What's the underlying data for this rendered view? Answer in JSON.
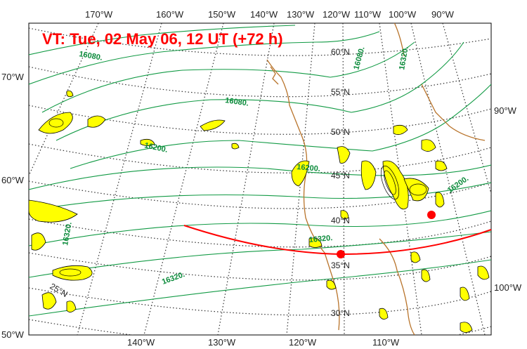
{
  "title": "VT:  Tue, 02 May 06, 12 UT (+72 h)",
  "top_longitudes": [
    "170°W",
    "160°W",
    "150°W",
    "140°W",
    "130°W",
    "120°W",
    "110°W",
    "100°W",
    "90°W"
  ],
  "bottom_longitudes": [
    "140°W",
    "130°W",
    "120°W",
    "110°W"
  ],
  "left_latitudes": [
    "70°W",
    "60°W",
    "50°W"
  ],
  "right_labels": [
    "90°W",
    "100°W"
  ],
  "interior_latitudes": [
    "60°N",
    "55°N",
    "50°N",
    "45°N",
    "40°N",
    "35°N",
    "30°N",
    "25°N"
  ],
  "contour_labels": [
    "16080.",
    "16080.",
    "16200.",
    "16200.",
    "16200.",
    "16320.",
    "16320.",
    "16320.",
    "16320.",
    "16080."
  ],
  "colors": {
    "contour": "#119a44",
    "trajectory": "#ff0000",
    "coast": "#b8732a",
    "shading": "#ffff00",
    "grid": "#333333"
  }
}
